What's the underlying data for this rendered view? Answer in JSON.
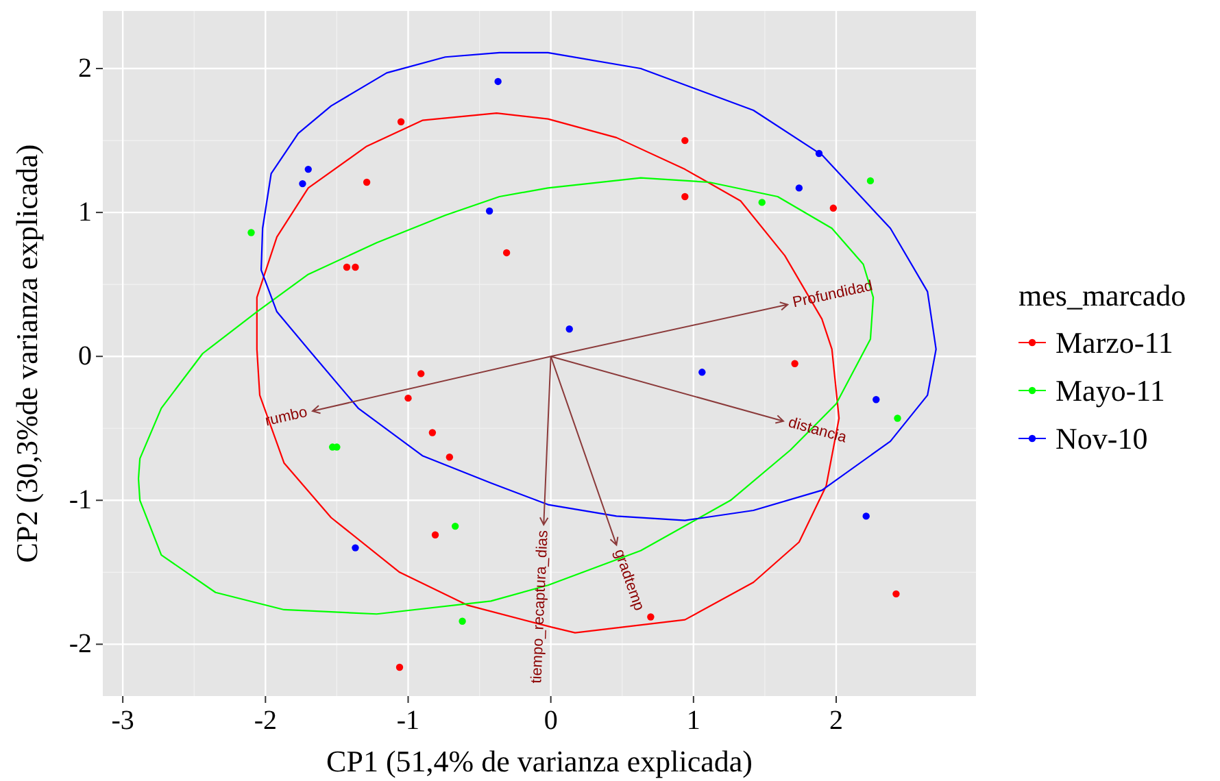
{
  "chart_data": {
    "type": "scatter",
    "xlabel": "CP1 (51,4% de varianza explicada)",
    "ylabel": "CP2 (30,3%de varianza explicada)",
    "legend_title": "mes_marcado",
    "legend": "right",
    "grid": true,
    "marker": "circle",
    "xlim": [
      -3.14,
      2.98
    ],
    "ylim": [
      -2.36,
      2.4
    ],
    "xticks": [
      -3,
      -2,
      -1,
      0,
      1,
      2
    ],
    "yticks": [
      -2,
      -1,
      0,
      1,
      2
    ],
    "series": [
      {
        "name": "Marzo-11",
        "color": "#ff0000",
        "x": [
          -1.05,
          -1.29,
          -1.43,
          -1.37,
          -0.31,
          0.94,
          0.94,
          1.98,
          1.71,
          -0.91,
          -1.0,
          -0.83,
          -0.71,
          -0.81,
          0.7,
          2.42,
          -1.06
        ],
        "values": [
          1.63,
          1.21,
          0.62,
          0.62,
          0.72,
          1.5,
          1.11,
          1.03,
          -0.05,
          -0.12,
          -0.29,
          -0.53,
          -0.7,
          -1.24,
          -1.81,
          -1.65,
          -2.16
        ]
      },
      {
        "name": "Mayo-11",
        "color": "#00ff00",
        "x": [
          -2.1,
          -1.53,
          -1.5,
          -0.67,
          -0.62,
          1.48,
          2.24,
          2.43
        ],
        "values": [
          0.86,
          -0.63,
          -0.63,
          -1.18,
          -1.84,
          1.07,
          1.22,
          -0.43
        ]
      },
      {
        "name": "Nov-10",
        "color": "#0000ff",
        "x": [
          -0.37,
          -1.7,
          -1.74,
          -0.43,
          0.13,
          1.06,
          1.88,
          1.74,
          2.28,
          2.21,
          -1.37
        ],
        "values": [
          1.91,
          1.3,
          1.2,
          1.01,
          0.19,
          -0.11,
          1.41,
          1.17,
          -0.3,
          -1.11,
          -1.33
        ]
      }
    ],
    "annotations": [
      "Profundidad",
      "distancia",
      "gradtemp",
      "tiempo_recaptura_dias",
      "rumbo"
    ]
  }
}
